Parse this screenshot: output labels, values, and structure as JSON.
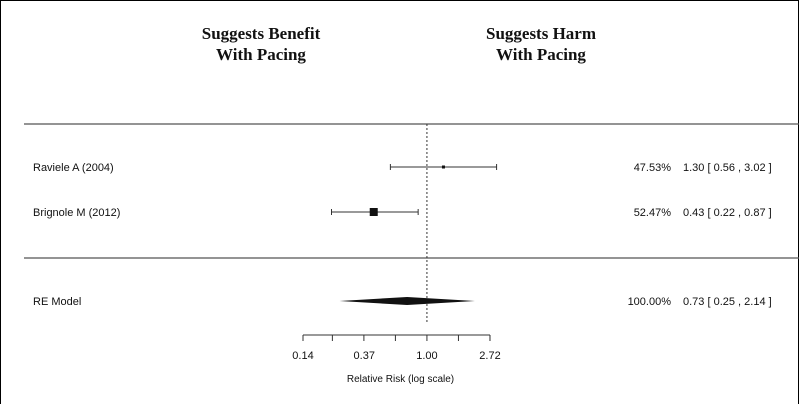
{
  "headers": {
    "benefit": [
      "Suggests Benefit",
      "With Pacing"
    ],
    "harm": [
      "Suggests Harm",
      "With Pacing"
    ]
  },
  "chart_data": {
    "type": "forest",
    "xlabel": "Relative Risk (log scale)",
    "x_scale": "log",
    "xlim": [
      0.14,
      2.72
    ],
    "xticks": [
      0.14,
      0.37,
      1.0,
      2.72
    ],
    "xtick_labels": [
      "0.14",
      "0.37",
      "1.00",
      "2.72"
    ],
    "reference_line": 1.0,
    "studies": [
      {
        "label": "Raviele A (2004)",
        "weight": "47.53%",
        "estimate": 1.3,
        "lower": 0.56,
        "upper": 3.02,
        "ci_text": "1.30 [ 0.56 , 3.02 ]"
      },
      {
        "label": "Brignole M (2012)",
        "weight": "52.47%",
        "estimate": 0.43,
        "lower": 0.22,
        "upper": 0.87,
        "ci_text": "0.43 [ 0.22 , 0.87 ]"
      }
    ],
    "summary": {
      "label": "RE Model",
      "weight": "100.00%",
      "estimate": 0.73,
      "lower": 0.25,
      "upper": 2.14,
      "ci_text": "0.73 [ 0.25 , 2.14 ]"
    }
  }
}
